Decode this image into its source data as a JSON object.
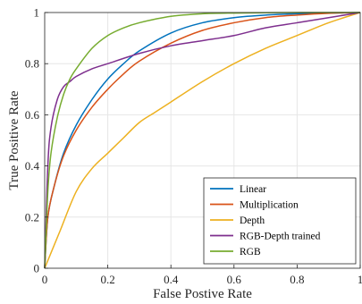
{
  "chart_data": {
    "type": "line",
    "xlabel": "False Postive Rate",
    "ylabel": "True Positive Rate",
    "xlim": [
      0,
      1
    ],
    "ylim": [
      0,
      1
    ],
    "xticks": [
      "0",
      "0.2",
      "0.4",
      "0.6",
      "0.8",
      "1"
    ],
    "yticks": [
      "0",
      "0.2",
      "0.4",
      "0.6",
      "0.8",
      "1"
    ],
    "grid": true,
    "legend_position": "bottom-right",
    "series": [
      {
        "name": "Linear",
        "color": "#0072BD",
        "x": [
          0,
          0.01,
          0.03,
          0.06,
          0.1,
          0.15,
          0.2,
          0.25,
          0.3,
          0.4,
          0.5,
          0.6,
          0.7,
          0.8,
          0.9,
          1.0
        ],
        "y": [
          0,
          0.2,
          0.32,
          0.45,
          0.56,
          0.66,
          0.74,
          0.8,
          0.85,
          0.92,
          0.96,
          0.98,
          0.99,
          0.995,
          0.998,
          1.0
        ]
      },
      {
        "name": "Multiplication",
        "color": "#D95319",
        "x": [
          0,
          0.01,
          0.03,
          0.06,
          0.1,
          0.15,
          0.2,
          0.25,
          0.3,
          0.4,
          0.5,
          0.6,
          0.7,
          0.8,
          0.9,
          1.0
        ],
        "y": [
          0,
          0.2,
          0.32,
          0.44,
          0.54,
          0.63,
          0.7,
          0.76,
          0.81,
          0.88,
          0.93,
          0.96,
          0.98,
          0.99,
          0.997,
          1.0
        ]
      },
      {
        "name": "Depth",
        "color": "#EDB120",
        "x": [
          0,
          0.02,
          0.05,
          0.1,
          0.15,
          0.2,
          0.25,
          0.3,
          0.35,
          0.4,
          0.5,
          0.6,
          0.7,
          0.8,
          0.9,
          1.0
        ],
        "y": [
          0,
          0.06,
          0.15,
          0.3,
          0.39,
          0.45,
          0.51,
          0.57,
          0.61,
          0.65,
          0.73,
          0.8,
          0.86,
          0.91,
          0.96,
          1.0
        ]
      },
      {
        "name": "RGB-Depth trained",
        "color": "#7E2F8E",
        "x": [
          0,
          0.01,
          0.02,
          0.04,
          0.06,
          0.08,
          0.1,
          0.15,
          0.2,
          0.3,
          0.4,
          0.5,
          0.6,
          0.7,
          0.8,
          0.9,
          1.0
        ],
        "y": [
          0,
          0.4,
          0.55,
          0.66,
          0.71,
          0.73,
          0.75,
          0.78,
          0.8,
          0.84,
          0.87,
          0.89,
          0.91,
          0.94,
          0.96,
          0.98,
          1.0
        ]
      },
      {
        "name": "RGB",
        "color": "#77AC30",
        "x": [
          0,
          0.01,
          0.02,
          0.04,
          0.06,
          0.08,
          0.1,
          0.15,
          0.2,
          0.25,
          0.3,
          0.4,
          0.5,
          0.6,
          0.8,
          1.0
        ],
        "y": [
          0,
          0.3,
          0.45,
          0.59,
          0.68,
          0.74,
          0.78,
          0.86,
          0.91,
          0.94,
          0.96,
          0.985,
          0.995,
          0.998,
          1.0,
          1.0
        ]
      }
    ]
  }
}
